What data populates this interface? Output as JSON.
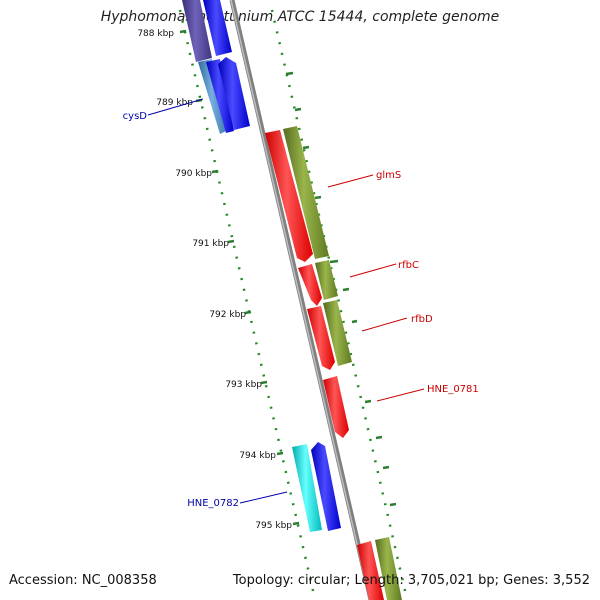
{
  "title": "Hyphomonas neptunium ATCC 15444, complete genome",
  "footer": {
    "accession": "Accession: NC_008358",
    "summary": "Topology: circular; Length: 3,705,021 bp; Genes: 3,552"
  },
  "ticks": [
    "788 kbp",
    "789 kbp",
    "790 kbp",
    "791 kbp",
    "792 kbp",
    "793 kbp",
    "794 kbp",
    "795 kbp"
  ],
  "gene_labels": {
    "cysD": "cysD",
    "glmS": "glmS",
    "rfbC": "rfbC",
    "rfbD": "rfbD",
    "HNE_0781": "HNE_0781",
    "HNE_0782": "HNE_0782"
  },
  "colors": {
    "forward_gene": "#ff0000",
    "forward_cds": "#6b8e23",
    "reverse_gene": "#0000ff",
    "reverse_cds_cyan": "#00cccc",
    "reverse_cds_blue": "#4682b4",
    "reverse_cds_purple": "#483d8b",
    "label_red": "#cc0000",
    "label_blue": "#0000aa",
    "backbone": "#888888",
    "ruler": "#228b22"
  }
}
